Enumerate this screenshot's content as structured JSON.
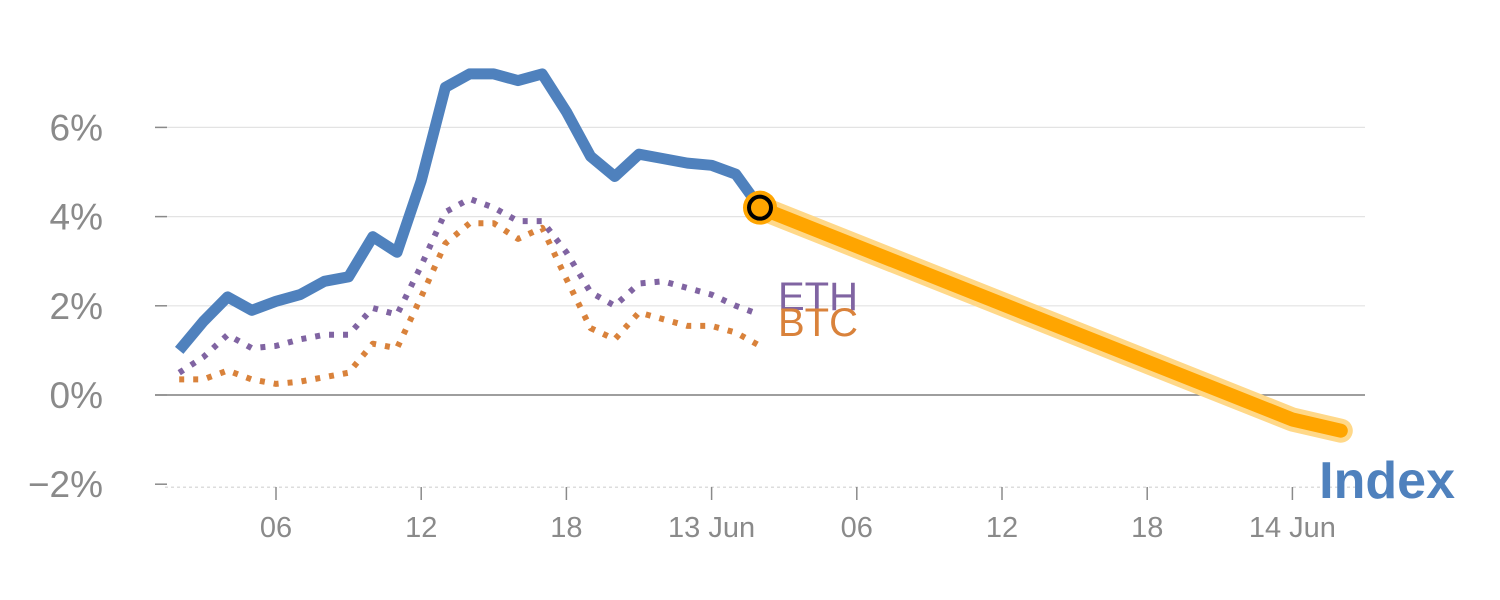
{
  "chart_data": {
    "type": "line",
    "title": "",
    "xlabel": "",
    "ylabel": "",
    "x_axis_type": "time (hourly)",
    "x_range": [
      "2022-06-12T01:00",
      "2022-06-14T03:00"
    ],
    "x_ticks": [
      {
        "t": "2022-06-12T06:00",
        "label": "06"
      },
      {
        "t": "2022-06-12T12:00",
        "label": "12"
      },
      {
        "t": "2022-06-12T18:00",
        "label": "18"
      },
      {
        "t": "2022-06-13T00:00",
        "label": "13 Jun"
      },
      {
        "t": "2022-06-13T06:00",
        "label": "06"
      },
      {
        "t": "2022-06-13T12:00",
        "label": "12"
      },
      {
        "t": "2022-06-13T18:00",
        "label": "18"
      },
      {
        "t": "2022-06-14T00:00",
        "label": "14 Jun"
      }
    ],
    "y_ticks": [
      {
        "v": -2,
        "label": "−2%"
      },
      {
        "v": 0,
        "label": "0%"
      },
      {
        "v": 2,
        "label": "2%"
      },
      {
        "v": 4,
        "label": "4%"
      },
      {
        "v": 6,
        "label": "6%"
      }
    ],
    "ylim": [
      -2,
      8
    ],
    "grid": true,
    "series": [
      {
        "name": "Index",
        "color": "#4f81bd",
        "style": "solid",
        "points": [
          [
            "2022-06-12T02:00",
            1.0
          ],
          [
            "2022-06-12T03:00",
            1.65
          ],
          [
            "2022-06-12T04:00",
            2.2
          ],
          [
            "2022-06-12T05:00",
            1.9
          ],
          [
            "2022-06-12T06:00",
            2.1
          ],
          [
            "2022-06-12T07:00",
            2.25
          ],
          [
            "2022-06-12T08:00",
            2.55
          ],
          [
            "2022-06-12T09:00",
            2.65
          ],
          [
            "2022-06-12T10:00",
            3.55
          ],
          [
            "2022-06-12T11:00",
            3.2
          ],
          [
            "2022-06-12T12:00",
            4.8
          ],
          [
            "2022-06-12T13:00",
            6.9
          ],
          [
            "2022-06-12T14:00",
            7.2
          ],
          [
            "2022-06-12T15:00",
            7.2
          ],
          [
            "2022-06-12T16:00",
            7.05
          ],
          [
            "2022-06-12T17:00",
            7.2
          ],
          [
            "2022-06-12T18:00",
            6.35
          ],
          [
            "2022-06-12T19:00",
            5.35
          ],
          [
            "2022-06-12T20:00",
            4.9
          ],
          [
            "2022-06-12T21:00",
            5.4
          ],
          [
            "2022-06-12T22:00",
            5.3
          ],
          [
            "2022-06-12T23:00",
            5.2
          ],
          [
            "2022-06-13T00:00",
            5.15
          ],
          [
            "2022-06-13T01:00",
            4.95
          ],
          [
            "2022-06-13T02:00",
            4.2
          ]
        ]
      },
      {
        "name": "ETH",
        "color": "#8064a2",
        "style": "dotted",
        "points": [
          [
            "2022-06-12T02:00",
            0.5
          ],
          [
            "2022-06-12T03:00",
            0.85
          ],
          [
            "2022-06-12T04:00",
            1.35
          ],
          [
            "2022-06-12T05:00",
            1.05
          ],
          [
            "2022-06-12T06:00",
            1.1
          ],
          [
            "2022-06-12T07:00",
            1.25
          ],
          [
            "2022-06-12T08:00",
            1.35
          ],
          [
            "2022-06-12T09:00",
            1.35
          ],
          [
            "2022-06-12T10:00",
            1.95
          ],
          [
            "2022-06-12T11:00",
            1.8
          ],
          [
            "2022-06-12T12:00",
            2.9
          ],
          [
            "2022-06-12T13:00",
            4.1
          ],
          [
            "2022-06-12T14:00",
            4.4
          ],
          [
            "2022-06-12T15:00",
            4.2
          ],
          [
            "2022-06-12T16:00",
            3.9
          ],
          [
            "2022-06-12T17:00",
            3.9
          ],
          [
            "2022-06-12T18:00",
            3.2
          ],
          [
            "2022-06-12T19:00",
            2.3
          ],
          [
            "2022-06-12T20:00",
            2.0
          ],
          [
            "2022-06-12T21:00",
            2.5
          ],
          [
            "2022-06-12T22:00",
            2.55
          ],
          [
            "2022-06-12T23:00",
            2.4
          ],
          [
            "2022-06-13T00:00",
            2.25
          ],
          [
            "2022-06-13T01:00",
            2.0
          ],
          [
            "2022-06-13T02:00",
            1.8
          ]
        ]
      },
      {
        "name": "BTC",
        "color": "#d9823b",
        "style": "dotted",
        "points": [
          [
            "2022-06-12T02:00",
            0.35
          ],
          [
            "2022-06-12T03:00",
            0.35
          ],
          [
            "2022-06-12T04:00",
            0.55
          ],
          [
            "2022-06-12T05:00",
            0.35
          ],
          [
            "2022-06-12T06:00",
            0.25
          ],
          [
            "2022-06-12T07:00",
            0.3
          ],
          [
            "2022-06-12T08:00",
            0.4
          ],
          [
            "2022-06-12T09:00",
            0.5
          ],
          [
            "2022-06-12T10:00",
            1.15
          ],
          [
            "2022-06-12T11:00",
            1.05
          ],
          [
            "2022-06-12T12:00",
            2.2
          ],
          [
            "2022-06-12T13:00",
            3.4
          ],
          [
            "2022-06-12T14:00",
            3.85
          ],
          [
            "2022-06-12T15:00",
            3.85
          ],
          [
            "2022-06-12T16:00",
            3.5
          ],
          [
            "2022-06-12T17:00",
            3.75
          ],
          [
            "2022-06-12T18:00",
            2.6
          ],
          [
            "2022-06-12T19:00",
            1.5
          ],
          [
            "2022-06-12T20:00",
            1.25
          ],
          [
            "2022-06-12T21:00",
            1.85
          ],
          [
            "2022-06-12T22:00",
            1.7
          ],
          [
            "2022-06-12T23:00",
            1.55
          ],
          [
            "2022-06-13T00:00",
            1.55
          ],
          [
            "2022-06-13T01:00",
            1.4
          ],
          [
            "2022-06-13T02:00",
            1.1
          ]
        ]
      },
      {
        "name": "",
        "color": "#ffa500",
        "style": "highlight",
        "points": [
          [
            "2022-06-13T02:00",
            4.2
          ],
          [
            "2022-06-14T00:00",
            -0.55
          ],
          [
            "2022-06-14T02:00",
            -0.8
          ]
        ]
      }
    ],
    "marker": {
      "t": "2022-06-13T02:00",
      "v": 4.2,
      "fill": "#ffa500",
      "stroke": "#000000"
    },
    "series_labels": [
      "ETH",
      "BTC"
    ],
    "index_label": "Index"
  }
}
